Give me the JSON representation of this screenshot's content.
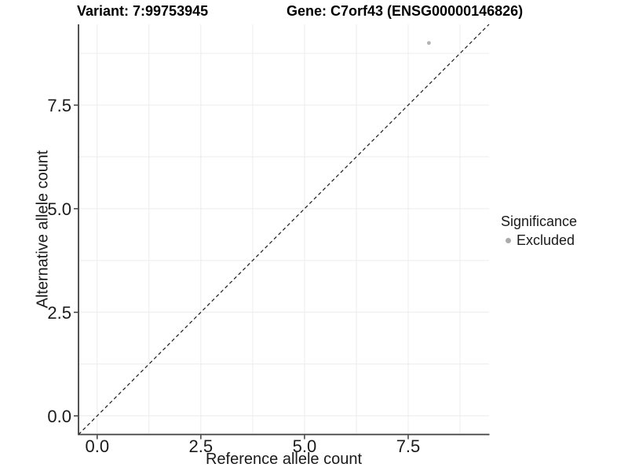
{
  "chart_data": {
    "type": "scatter",
    "title_left": "Variant: 7:99753945",
    "title_right": "Gene: C7orf43 (ENSG00000146826)",
    "xlabel": "Reference allele count",
    "ylabel": "Alternative allele count",
    "xlim": [
      -0.45,
      9.45
    ],
    "ylim": [
      -0.45,
      9.45
    ],
    "x_ticks": [
      0,
      2.5,
      5,
      7.5
    ],
    "x_tick_labels": [
      "0.0",
      "2.5",
      "5.0",
      "7.5"
    ],
    "y_ticks": [
      0,
      2.5,
      5,
      7.5
    ],
    "y_tick_labels": [
      "0.0",
      "2.5",
      "5.0",
      "7.5"
    ],
    "grid": true,
    "grid_values": [
      0,
      1.25,
      2.5,
      3.75,
      5,
      6.25,
      7.5,
      8.75
    ],
    "points": [
      {
        "x": 8,
        "y": 9,
        "series": "Excluded"
      }
    ],
    "reference_line": {
      "style": "dashed",
      "slope": 1,
      "intercept": 0
    },
    "legend": {
      "title": "Significance",
      "position": "right",
      "entries": [
        {
          "label": "Excluded",
          "color": "#ababab",
          "marker": "circle"
        }
      ]
    },
    "colors": {
      "point": "#b3b3b3",
      "grid": "#ececec",
      "axis": "#3f3f3f",
      "dashed_line": "#1a1a1a",
      "tick_text": "#1a1a1a"
    }
  }
}
